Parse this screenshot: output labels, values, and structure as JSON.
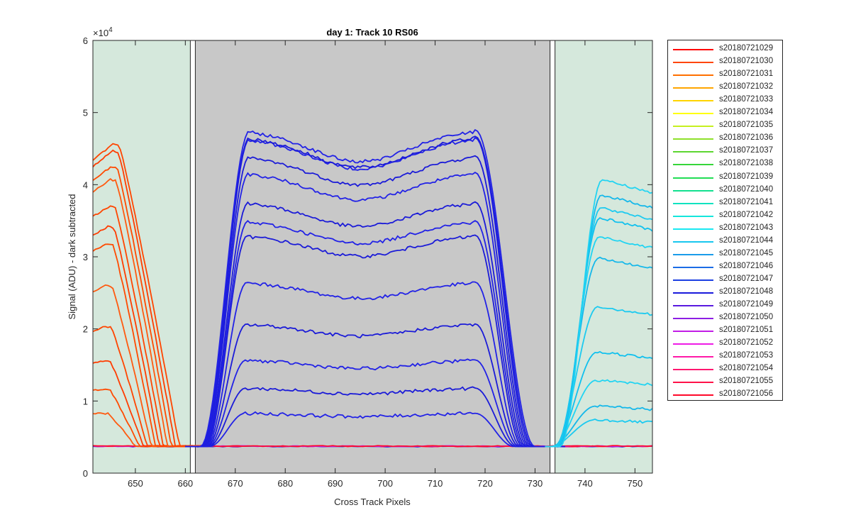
{
  "chart_data": {
    "type": "line",
    "title": "day 1: Track 10  RS06",
    "xlabel": "Cross Track Pixels",
    "ylabel": "Signal (ADU) - dark subtracted",
    "y_exponent_label": "×10",
    "y_exponent_power": "4",
    "xlim": [
      641.5,
      753.5
    ],
    "ylim": [
      0,
      60000
    ],
    "xticks": [
      650,
      660,
      670,
      680,
      690,
      700,
      710,
      720,
      730,
      740,
      750
    ],
    "yticks": [
      0,
      10000,
      20000,
      30000,
      40000,
      50000,
      60000
    ],
    "ytick_labels": [
      "0",
      "1",
      "2",
      "3",
      "4",
      "5",
      "6"
    ],
    "grid": false,
    "legend_position": "outside-right",
    "regions": [
      {
        "name": "left-region",
        "x": [
          641.5,
          661
        ],
        "color": "#d5e8dc"
      },
      {
        "name": "center-region",
        "x": [
          662,
          733
        ],
        "color": "#c8c8c8"
      },
      {
        "name": "right-region",
        "x": [
          734,
          753.5
        ],
        "color": "#d5e8dc"
      }
    ],
    "baseline": 3700,
    "left_peaks": [
      8300,
      11700,
      15600,
      20300,
      26000,
      31800,
      34200,
      37000,
      40700,
      42500,
      44700,
      45600
    ],
    "center_levels": [
      8300,
      11800,
      15700,
      20700,
      26500,
      33000,
      35000,
      37600,
      41700,
      44000,
      46500,
      46700,
      47600
    ],
    "right_levels": [
      7400,
      9300,
      12900,
      16800,
      23100,
      29800,
      32800,
      35400,
      36800,
      38600,
      40700
    ],
    "series": [
      {
        "name": "s20180721029",
        "color": "#ff0000"
      },
      {
        "name": "s20180721030",
        "color": "#ff4500"
      },
      {
        "name": "s20180721031",
        "color": "#ff7000"
      },
      {
        "name": "s20180721032",
        "color": "#ffa500"
      },
      {
        "name": "s20180721033",
        "color": "#ffd400"
      },
      {
        "name": "s20180721034",
        "color": "#ffff00"
      },
      {
        "name": "s20180721035",
        "color": "#c6f020"
      },
      {
        "name": "s20180721036",
        "color": "#8ee02a"
      },
      {
        "name": "s20180721037",
        "color": "#5cd630"
      },
      {
        "name": "s20180721038",
        "color": "#36d63a"
      },
      {
        "name": "s20180721039",
        "color": "#22dd55"
      },
      {
        "name": "s20180721040",
        "color": "#12e090"
      },
      {
        "name": "s20180721041",
        "color": "#10e3c0"
      },
      {
        "name": "s20180721042",
        "color": "#14e6dc"
      },
      {
        "name": "s20180721043",
        "color": "#19e8f2"
      },
      {
        "name": "s20180721044",
        "color": "#18c7ef"
      },
      {
        "name": "s20180721045",
        "color": "#1a9cea"
      },
      {
        "name": "s20180721046",
        "color": "#1b6ce6"
      },
      {
        "name": "s20180721047",
        "color": "#1c3fe2"
      },
      {
        "name": "s20180721048",
        "color": "#1a1adc"
      },
      {
        "name": "s20180721049",
        "color": "#5a1ae0"
      },
      {
        "name": "s20180721050",
        "color": "#8d1ee4"
      },
      {
        "name": "s20180721051",
        "color": "#c21de6"
      },
      {
        "name": "s20180721052",
        "color": "#ee1ce6"
      },
      {
        "name": "s20180721053",
        "color": "#ff1aa8"
      },
      {
        "name": "s20180721054",
        "color": "#ff1770"
      },
      {
        "name": "s20180721055",
        "color": "#ff1148"
      },
      {
        "name": "s20180721056",
        "color": "#ff0a2a"
      }
    ]
  }
}
